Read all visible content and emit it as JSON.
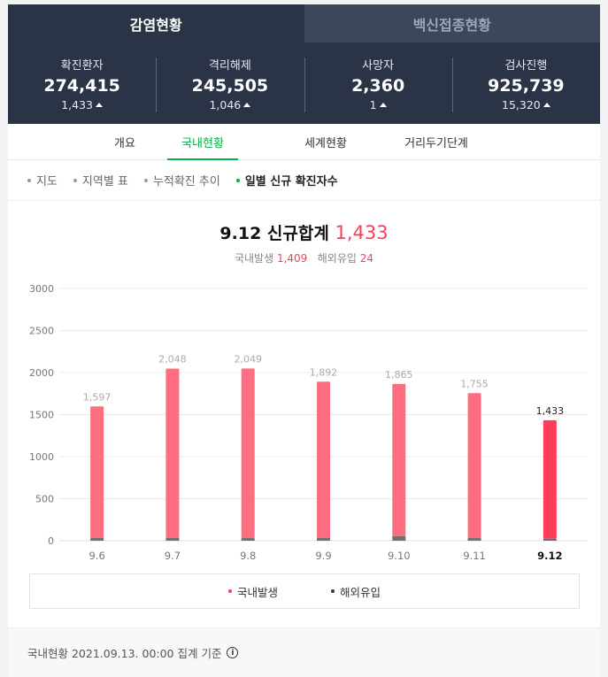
{
  "tabs": [
    {
      "label": "감염현황"
    },
    {
      "label": "백신접종현황"
    }
  ],
  "stats": [
    {
      "label": "확진환자",
      "value": "274,415",
      "change": "1,433"
    },
    {
      "label": "격리해제",
      "value": "245,505",
      "change": "1,046"
    },
    {
      "label": "사망자",
      "value": "2,360",
      "change": "1"
    },
    {
      "label": "검사진행",
      "value": "925,739",
      "change": "15,320"
    }
  ],
  "subnav": [
    {
      "label": "개요"
    },
    {
      "label": "국내현황"
    },
    {
      "label": "세계현황"
    },
    {
      "label": "거리두기단계"
    }
  ],
  "filters": [
    {
      "label": "지도"
    },
    {
      "label": "지역별 표"
    },
    {
      "label": "누적확진 추이"
    },
    {
      "label": "일별 신규 확진자수"
    }
  ],
  "headline": {
    "date": "9.12",
    "label": "신규합계",
    "total": "1,433"
  },
  "subline": {
    "domestic_label": "국내발생",
    "domestic_value": "1,409",
    "imported_label": "해외유입",
    "imported_value": "24"
  },
  "colors": {
    "domestic": "#ff6d80",
    "domestic_latest": "#ff3c5c",
    "imported": "#6f6f6f",
    "accent": "#07b04a",
    "header_bg": "#2b3347"
  },
  "chart_data": {
    "type": "bar",
    "stacked": true,
    "categories": [
      "9.6",
      "9.7",
      "9.8",
      "9.9",
      "9.10",
      "9.11",
      "9.12"
    ],
    "totals": [
      1597,
      2048,
      2049,
      1892,
      1865,
      1755,
      1433
    ],
    "total_labels": [
      "1,597",
      "2,048",
      "2,049",
      "1,892",
      "1,865",
      "1,755",
      "1,433"
    ],
    "series": [
      {
        "name": "국내발생",
        "values": [
          1562,
          2015,
          2018,
          1857,
          1810,
          1724,
          1409
        ]
      },
      {
        "name": "해외유입",
        "values": [
          35,
          33,
          31,
          35,
          55,
          31,
          24
        ]
      }
    ],
    "yticks": [
      0,
      500,
      1000,
      1500,
      2000,
      2500,
      3000
    ],
    "ylim": [
      0,
      3000
    ],
    "grid": true,
    "legend": "bottom"
  },
  "legend": [
    {
      "label": "국내발생"
    },
    {
      "label": "해외유입"
    }
  ],
  "footer": {
    "text": "국내현황 2021.09.13. 00:00 집계 기준",
    "info_icon": "info-icon"
  }
}
